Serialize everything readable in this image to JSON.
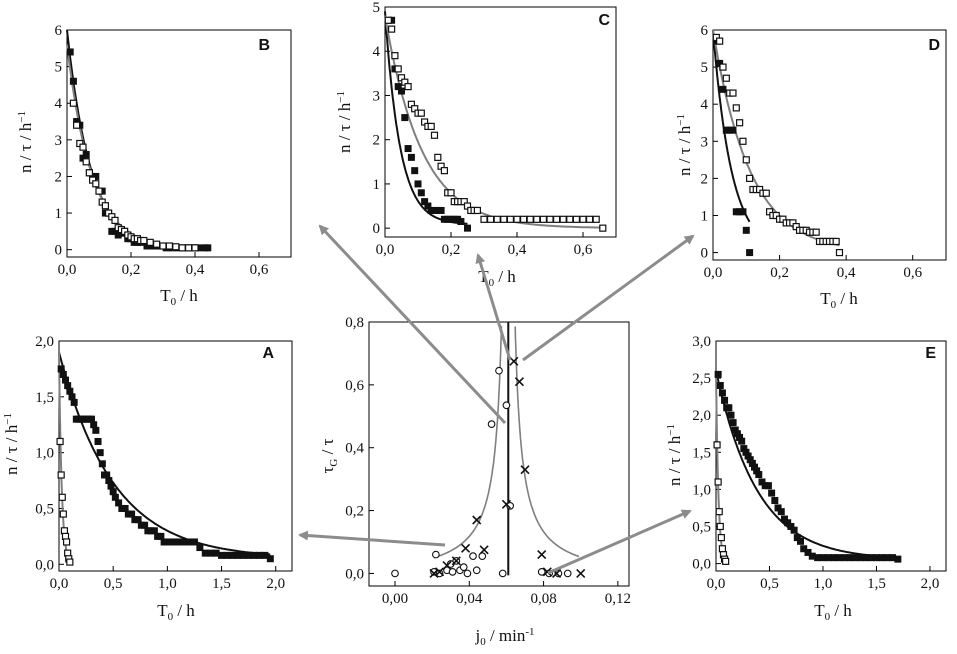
{
  "figure": {
    "colors": {
      "black": "#111111",
      "gray": "#7f7f7f",
      "open_marker": "#ffffff",
      "arrow": "#8c8c8c"
    }
  },
  "chart_data": [
    {
      "id": "B",
      "type": "scatter",
      "label": "B",
      "xlabel": "T0 / h",
      "ylabel": "n / τ / h-1",
      "xlim": [
        0,
        0.7
      ],
      "ylim": [
        -0.2,
        6
      ],
      "xticks": [
        "0,0",
        "0,2",
        "0,4",
        "0,6"
      ],
      "yticks": [
        "0",
        "1",
        "2",
        "3",
        "4",
        "5",
        "6"
      ],
      "series": [
        {
          "name": "filled",
          "marker": "filled-square",
          "x": [
            0.01,
            0.02,
            0.03,
            0.04,
            0.05,
            0.06,
            0.07,
            0.08,
            0.09,
            0.1,
            0.11,
            0.12,
            0.13,
            0.14,
            0.15,
            0.16,
            0.17,
            0.18,
            0.19,
            0.2,
            0.21,
            0.22,
            0.23,
            0.25,
            0.27,
            0.29,
            0.31,
            0.33,
            0.35,
            0.37,
            0.39,
            0.41,
            0.43,
            0.44
          ],
          "y": [
            5.4,
            4.6,
            3.5,
            3.4,
            2.5,
            2.6,
            2.1,
            2.0,
            2.0,
            1.6,
            1.6,
            1.0,
            1.0,
            0.5,
            0.5,
            0.4,
            0.45,
            0.5,
            0.3,
            0.3,
            0.2,
            0.2,
            0.2,
            0.1,
            0.1,
            0.1,
            0.05,
            0.05,
            0.05,
            0.05,
            0.05,
            0.05,
            0.05,
            0.05
          ],
          "fit": {
            "a": 6.0,
            "k": 13.5,
            "c": 0.03,
            "xmax": 0.44
          }
        },
        {
          "name": "open",
          "marker": "open-square",
          "x": [
            0.02,
            0.03,
            0.04,
            0.05,
            0.06,
            0.07,
            0.08,
            0.09,
            0.1,
            0.11,
            0.12,
            0.13,
            0.14,
            0.15,
            0.16,
            0.17,
            0.18,
            0.19,
            0.2,
            0.21,
            0.22,
            0.23,
            0.24,
            0.26,
            0.28,
            0.3,
            0.32,
            0.34,
            0.36,
            0.38,
            0.4
          ],
          "y": [
            4.0,
            3.4,
            2.9,
            2.8,
            2.4,
            2.1,
            1.9,
            1.8,
            1.6,
            1.3,
            1.2,
            1.0,
            0.9,
            0.8,
            0.6,
            0.55,
            0.5,
            0.4,
            0.35,
            0.3,
            0.3,
            0.25,
            0.25,
            0.2,
            0.15,
            0.1,
            0.1,
            0.08,
            0.05,
            0.05,
            0.05
          ],
          "fit": {
            "a": 5.6,
            "k": 13.0,
            "c": 0.03,
            "xmax": 0.42
          }
        }
      ]
    },
    {
      "id": "C",
      "type": "scatter",
      "label": "C",
      "xlabel": "T0 / h",
      "ylabel": "n / τ / h-1",
      "xlim": [
        0,
        0.7
      ],
      "ylim": [
        -0.2,
        5
      ],
      "xticks": [
        "0,0",
        "0,2",
        "0,4",
        "0,6"
      ],
      "yticks": [
        "0",
        "1",
        "2",
        "3",
        "4",
        "5"
      ],
      "series": [
        {
          "name": "filled",
          "marker": "filled-square",
          "x": [
            0.02,
            0.03,
            0.04,
            0.05,
            0.06,
            0.07,
            0.08,
            0.09,
            0.1,
            0.11,
            0.12,
            0.13,
            0.14,
            0.15,
            0.16,
            0.17,
            0.18,
            0.19,
            0.2,
            0.21,
            0.22,
            0.23,
            0.25
          ],
          "y": [
            4.7,
            3.6,
            3.2,
            3.1,
            2.5,
            1.8,
            1.6,
            1.3,
            1.0,
            0.8,
            0.6,
            0.5,
            0.4,
            0.4,
            0.4,
            0.4,
            0.2,
            0.2,
            0.2,
            0.2,
            0.2,
            0.15,
            0.0
          ],
          "fit": {
            "a": 4.9,
            "k": 22.0,
            "c": 0.08,
            "xmax": 0.25
          }
        },
        {
          "name": "open",
          "marker": "open-square",
          "x": [
            0.01,
            0.02,
            0.03,
            0.04,
            0.05,
            0.06,
            0.07,
            0.08,
            0.09,
            0.1,
            0.11,
            0.12,
            0.13,
            0.14,
            0.15,
            0.16,
            0.17,
            0.18,
            0.19,
            0.2,
            0.21,
            0.22,
            0.23,
            0.24,
            0.25,
            0.26,
            0.27,
            0.28,
            0.3,
            0.32,
            0.34,
            0.36,
            0.38,
            0.4,
            0.42,
            0.44,
            0.46,
            0.48,
            0.5,
            0.52,
            0.54,
            0.56,
            0.58,
            0.6,
            0.62,
            0.64,
            0.66
          ],
          "y": [
            4.7,
            4.5,
            3.9,
            3.6,
            3.4,
            3.3,
            3.2,
            2.8,
            2.7,
            2.6,
            2.6,
            2.4,
            2.3,
            2.3,
            2.1,
            1.6,
            1.4,
            1.3,
            0.8,
            0.8,
            0.6,
            0.6,
            0.6,
            0.6,
            0.5,
            0.4,
            0.4,
            0.4,
            0.2,
            0.2,
            0.2,
            0.2,
            0.2,
            0.2,
            0.2,
            0.2,
            0.2,
            0.2,
            0.2,
            0.2,
            0.2,
            0.2,
            0.2,
            0.2,
            0.2,
            0.2,
            0.0
          ],
          "fit": {
            "a": 4.8,
            "k": 9.0,
            "c": 0.0,
            "xmax": 0.66
          }
        }
      ]
    },
    {
      "id": "D",
      "type": "scatter",
      "label": "D",
      "xlabel": "T0 / h",
      "ylabel": "n / τ / h-1",
      "xlim": [
        0,
        0.7
      ],
      "ylim": [
        -0.2,
        6
      ],
      "xticks": [
        "0,0",
        "0,2",
        "0,4",
        "0,6"
      ],
      "yticks": [
        "0",
        "1",
        "2",
        "3",
        "4",
        "5",
        "6"
      ],
      "series": [
        {
          "name": "filled",
          "marker": "filled-square",
          "x": [
            0.01,
            0.02,
            0.03,
            0.04,
            0.05,
            0.06,
            0.07,
            0.08,
            0.09,
            0.1,
            0.11
          ],
          "y": [
            5.7,
            5.1,
            4.4,
            3.3,
            3.3,
            3.3,
            1.1,
            1.1,
            1.1,
            0.6,
            0.0
          ],
          "fit": {
            "a": 6.0,
            "k": 18.0,
            "c": 0.0,
            "xmax": 0.11
          }
        },
        {
          "name": "open",
          "marker": "open-square",
          "x": [
            0.01,
            0.02,
            0.03,
            0.04,
            0.05,
            0.06,
            0.07,
            0.08,
            0.09,
            0.1,
            0.11,
            0.12,
            0.13,
            0.14,
            0.15,
            0.16,
            0.17,
            0.18,
            0.19,
            0.2,
            0.21,
            0.22,
            0.23,
            0.24,
            0.25,
            0.26,
            0.27,
            0.28,
            0.29,
            0.3,
            0.31,
            0.32,
            0.33,
            0.34,
            0.35,
            0.36,
            0.37,
            0.38
          ],
          "y": [
            5.8,
            5.7,
            5.0,
            4.7,
            4.3,
            4.3,
            3.9,
            3.5,
            3.0,
            2.5,
            2.0,
            1.7,
            1.7,
            1.7,
            1.6,
            1.6,
            1.1,
            1.0,
            1.0,
            0.9,
            0.9,
            0.8,
            0.8,
            0.8,
            0.7,
            0.6,
            0.6,
            0.6,
            0.55,
            0.55,
            0.55,
            0.3,
            0.3,
            0.3,
            0.3,
            0.3,
            0.3,
            0.0
          ],
          "fit": {
            "a": 6.0,
            "k": 9.0,
            "c": 0.0,
            "xmax": 0.38
          }
        }
      ]
    },
    {
      "id": "A",
      "type": "scatter",
      "label": "A",
      "xlabel": "T0 / h",
      "ylabel": "n / τ / h-1",
      "xlim": [
        0,
        2.15
      ],
      "ylim": [
        -0.06,
        2.0
      ],
      "xticks": [
        "0,0",
        "0,5",
        "1,0",
        "1,5",
        "2,0"
      ],
      "yticks": [
        "0,0",
        "0,5",
        "1,0",
        "1,5",
        "2,0"
      ],
      "series": [
        {
          "name": "filled",
          "marker": "filled-square",
          "x": [
            0.02,
            0.04,
            0.06,
            0.08,
            0.1,
            0.12,
            0.14,
            0.16,
            0.18,
            0.2,
            0.22,
            0.24,
            0.26,
            0.28,
            0.3,
            0.32,
            0.34,
            0.36,
            0.38,
            0.4,
            0.42,
            0.44,
            0.46,
            0.48,
            0.5,
            0.52,
            0.55,
            0.58,
            0.61,
            0.64,
            0.67,
            0.7,
            0.73,
            0.76,
            0.79,
            0.82,
            0.85,
            0.88,
            0.91,
            0.94,
            0.97,
            1.0,
            1.05,
            1.1,
            1.15,
            1.2,
            1.25,
            1.3,
            1.35,
            1.4,
            1.45,
            1.5,
            1.55,
            1.6,
            1.65,
            1.7,
            1.75,
            1.8,
            1.85,
            1.9,
            1.95
          ],
          "y": [
            1.75,
            1.7,
            1.65,
            1.6,
            1.55,
            1.5,
            1.45,
            1.3,
            1.3,
            1.3,
            1.3,
            1.3,
            1.3,
            1.3,
            1.3,
            1.25,
            1.2,
            1.1,
            1.0,
            0.9,
            0.8,
            0.8,
            0.75,
            0.7,
            0.65,
            0.6,
            0.55,
            0.5,
            0.5,
            0.45,
            0.45,
            0.4,
            0.4,
            0.35,
            0.35,
            0.3,
            0.3,
            0.3,
            0.25,
            0.25,
            0.2,
            0.2,
            0.2,
            0.2,
            0.2,
            0.2,
            0.2,
            0.15,
            0.1,
            0.1,
            0.1,
            0.08,
            0.08,
            0.08,
            0.08,
            0.08,
            0.08,
            0.08,
            0.08,
            0.08,
            0.05
          ],
          "fit": {
            "a": 1.9,
            "k": 2.0,
            "c": 0.05,
            "xmax": 1.95
          }
        },
        {
          "name": "open",
          "marker": "open-square",
          "x": [
            0.01,
            0.02,
            0.03,
            0.04,
            0.05,
            0.06,
            0.07,
            0.08,
            0.09,
            0.1
          ],
          "y": [
            1.1,
            0.8,
            0.6,
            0.45,
            0.3,
            0.25,
            0.2,
            0.1,
            0.05,
            0.02
          ],
          "fit": {
            "a": 1.9,
            "k": 40.0,
            "c": 0.0,
            "xmax": 0.1
          }
        }
      ]
    },
    {
      "id": "E",
      "type": "scatter",
      "label": "E",
      "xlabel": "T0 / h",
      "ylabel": "n / τ / h-1",
      "xlim": [
        0,
        2.15
      ],
      "ylim": [
        -0.1,
        3.0
      ],
      "xticks": [
        "0,0",
        "0,5",
        "1,0",
        "1,5",
        "2,0"
      ],
      "yticks": [
        "0,0",
        "0,5",
        "1,0",
        "1,5",
        "2,0",
        "2,5",
        "3,0"
      ],
      "series": [
        {
          "name": "filled",
          "marker": "filled-square",
          "x": [
            0.02,
            0.04,
            0.06,
            0.08,
            0.1,
            0.12,
            0.14,
            0.16,
            0.18,
            0.2,
            0.22,
            0.24,
            0.26,
            0.28,
            0.3,
            0.32,
            0.34,
            0.36,
            0.38,
            0.4,
            0.43,
            0.46,
            0.49,
            0.52,
            0.55,
            0.58,
            0.61,
            0.64,
            0.67,
            0.7,
            0.73,
            0.76,
            0.79,
            0.82,
            0.86,
            0.9,
            0.95,
            1.0,
            1.05,
            1.1,
            1.15,
            1.2,
            1.25,
            1.3,
            1.35,
            1.4,
            1.45,
            1.5,
            1.55,
            1.6,
            1.65,
            1.7
          ],
          "y": [
            2.55,
            2.4,
            2.3,
            2.2,
            2.1,
            2.1,
            2.0,
            1.9,
            1.8,
            1.75,
            1.7,
            1.65,
            1.55,
            1.5,
            1.45,
            1.4,
            1.35,
            1.3,
            1.25,
            1.2,
            1.1,
            1.05,
            1.05,
            0.95,
            0.85,
            0.75,
            0.7,
            0.6,
            0.55,
            0.5,
            0.45,
            0.35,
            0.3,
            0.2,
            0.15,
            0.1,
            0.08,
            0.08,
            0.08,
            0.08,
            0.08,
            0.08,
            0.08,
            0.08,
            0.08,
            0.08,
            0.08,
            0.08,
            0.08,
            0.08,
            0.08,
            0.06
          ],
          "fit": {
            "a": 2.6,
            "k": 2.6,
            "c": 0.05,
            "xmax": 1.7
          }
        },
        {
          "name": "open",
          "marker": "open-square",
          "x": [
            0.01,
            0.02,
            0.03,
            0.04,
            0.05,
            0.06,
            0.07,
            0.08,
            0.09
          ],
          "y": [
            1.6,
            1.1,
            0.7,
            0.5,
            0.35,
            0.2,
            0.12,
            0.06,
            0.03
          ],
          "fit": {
            "a": 2.6,
            "k": 45.0,
            "c": 0.0,
            "xmax": 0.09
          }
        }
      ]
    },
    {
      "id": "main",
      "type": "scatter",
      "xlabel": "j0 / min-1",
      "ylabel": "τG / τ",
      "xlim": [
        -0.014,
        0.126
      ],
      "ylim": [
        -0.04,
        0.8
      ],
      "xticks": [
        "0,00",
        "0,04",
        "0,08",
        "0,12"
      ],
      "yticks": [
        "0,0",
        "0,2",
        "0,4",
        "0,6",
        "0,8"
      ],
      "vline_x": 0.061,
      "series": [
        {
          "name": "circles",
          "marker": "open-circle",
          "x": [
            0.0,
            0.021,
            0.022,
            0.024,
            0.028,
            0.03,
            0.031,
            0.033,
            0.035,
            0.037,
            0.039,
            0.042,
            0.044,
            0.047,
            0.052,
            0.056,
            0.058,
            0.06,
            0.062,
            0.079,
            0.083,
            0.088,
            0.093
          ],
          "y": [
            0.0,
            0.005,
            0.06,
            0.0,
            0.01,
            0.03,
            0.005,
            0.04,
            0.01,
            0.02,
            0.0,
            0.055,
            0.01,
            0.055,
            0.475,
            0.645,
            0.0,
            0.535,
            0.215,
            0.005,
            0.0,
            0.0,
            0.0
          ]
        },
        {
          "name": "crosses",
          "marker": "cross",
          "x": [
            0.021,
            0.024,
            0.028,
            0.033,
            0.038,
            0.044,
            0.048,
            0.06,
            0.064,
            0.067,
            0.07,
            0.079,
            0.082,
            0.087,
            0.1
          ],
          "y": [
            0.0,
            0.005,
            0.025,
            0.04,
            0.08,
            0.17,
            0.075,
            0.22,
            0.675,
            0.61,
            0.33,
            0.06,
            0.005,
            0.0,
            0.0
          ]
        }
      ],
      "fit_curves": [
        {
          "a": 0.003,
          "x0": 0.061,
          "side": "left",
          "xmin": 0.021
        },
        {
          "a": 0.003,
          "x0": 0.061,
          "side": "right",
          "xmax": 0.099
        }
      ]
    }
  ]
}
